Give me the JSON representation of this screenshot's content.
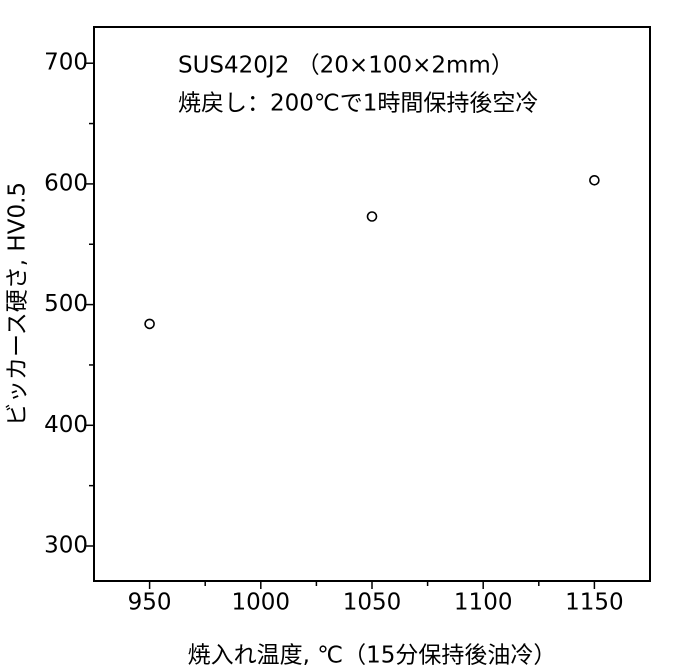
{
  "chart_data": {
    "type": "scatter",
    "annotations": [
      "SUS420J2 （20×100×2mm）",
      "焼戻し：200℃で1時間保持後空冷"
    ],
    "x_label": "焼入れ温度, ℃（15分保持後油冷）",
    "y_label": "ビッカース硬さ, HV0.5",
    "x": [
      950,
      1050,
      1150
    ],
    "values": [
      484,
      573,
      603
    ],
    "color": "#000000",
    "xlim": [
      925,
      1175
    ],
    "xticks": [
      950,
      1000,
      1050,
      1100,
      1150
    ],
    "xminorticks": [
      975,
      1025,
      1075,
      1125
    ],
    "ylim": [
      271,
      730
    ],
    "yticks": [
      300,
      400,
      500,
      600,
      700
    ],
    "yminorticks": [
      350,
      450,
      550,
      650
    ],
    "grid": false
  }
}
